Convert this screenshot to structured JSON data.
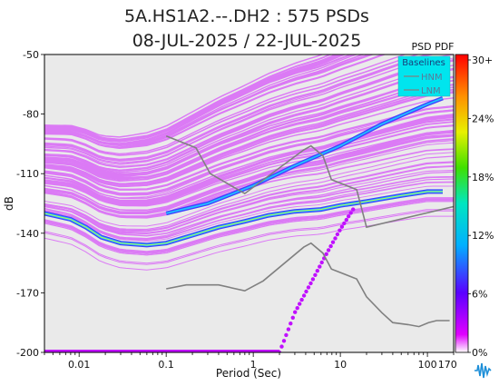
{
  "chart_data": {
    "type": "heatmap",
    "title": "5A.HS1A2.--.DH2 : 575 PSDs",
    "subtitle": "08-JUL-2025 / 22-JUL-2025",
    "xlabel": "Period (Sec)",
    "ylabel": "dB",
    "x_scale": "log",
    "xlim": [
      0.004,
      200
    ],
    "ylim": [
      -200,
      -50
    ],
    "x_ticks": [
      {
        "value": 0.01,
        "label": "0.01"
      },
      {
        "value": 0.1,
        "label": "0.1"
      },
      {
        "value": 1,
        "label": "1"
      },
      {
        "value": 10,
        "label": "10"
      },
      {
        "value": 100,
        "label": "100"
      },
      {
        "value": 170,
        "label": "170"
      }
    ],
    "y_ticks": [
      {
        "value": -50,
        "label": "-50"
      },
      {
        "value": -80,
        "label": "-80"
      },
      {
        "value": -110,
        "label": "-110"
      },
      {
        "value": -140,
        "label": "-140"
      },
      {
        "value": -170,
        "label": "-170"
      },
      {
        "value": -200,
        "label": "-200"
      }
    ],
    "colorbar": {
      "title": "PSD PDF",
      "ticks": [
        "0%",
        "6%",
        "12%",
        "18%",
        "24%",
        "30+"
      ],
      "colors": [
        "#ffffff",
        "#d800ff",
        "#3a00ff",
        "#00c8ff",
        "#00e070",
        "#dcf000",
        "#ff8000",
        "#ff0000"
      ]
    },
    "legend": {
      "title": "Baselines",
      "position": "top-right",
      "background": "#00e5ee",
      "entries": [
        "HNM",
        "LNM"
      ]
    },
    "colors": {
      "background": "#eaeaea",
      "density_low": "#d020ff",
      "density_mid": "#4040ff",
      "density_high": "#20c0ff",
      "baseline": "#808080"
    },
    "baselines": {
      "HNM": [
        [
          0.1,
          -91
        ],
        [
          0.22,
          -97
        ],
        [
          0.32,
          -110
        ],
        [
          0.8,
          -120
        ],
        [
          3.8,
          -98
        ],
        [
          4.6,
          -96
        ],
        [
          6.3,
          -101
        ],
        [
          7.9,
          -113
        ],
        [
          15.4,
          -118
        ],
        [
          20,
          -137
        ],
        [
          354,
          -124
        ]
      ],
      "LNM": [
        [
          0.1,
          -168
        ],
        [
          0.17,
          -166
        ],
        [
          0.4,
          -166
        ],
        [
          0.8,
          -169
        ],
        [
          1.3,
          -164
        ],
        [
          3.8,
          -147
        ],
        [
          4.6,
          -145
        ],
        [
          6.3,
          -150
        ],
        [
          7.9,
          -158
        ],
        [
          15.4,
          -163
        ],
        [
          20,
          -172
        ],
        [
          30,
          -180
        ],
        [
          40,
          -185
        ],
        [
          60,
          -186
        ],
        [
          80,
          -187
        ],
        [
          103,
          -185
        ],
        [
          127,
          -184
        ],
        [
          150,
          -184
        ],
        [
          180,
          -184
        ]
      ]
    },
    "main_trend": [
      [
        0.004,
        -130
      ],
      [
        0.008,
        -133
      ],
      [
        0.012,
        -137
      ],
      [
        0.018,
        -142
      ],
      [
        0.03,
        -145
      ],
      [
        0.06,
        -146
      ],
      [
        0.1,
        -145
      ],
      [
        0.2,
        -141
      ],
      [
        0.4,
        -137
      ],
      [
        0.8,
        -134
      ],
      [
        1.5,
        -131
      ],
      [
        3,
        -129
      ],
      [
        6,
        -128
      ],
      [
        10,
        -126
      ],
      [
        20,
        -124
      ],
      [
        50,
        -121
      ],
      [
        100,
        -119
      ],
      [
        150,
        -119
      ]
    ],
    "secondary_trend": [
      [
        0.1,
        -130
      ],
      [
        0.3,
        -125
      ],
      [
        1,
        -116
      ],
      [
        3,
        -106
      ],
      [
        10,
        -96
      ],
      [
        30,
        -85
      ],
      [
        100,
        -75
      ],
      [
        150,
        -72
      ]
    ],
    "dotted_trend": [
      [
        2,
        -200
      ],
      [
        3,
        -180
      ],
      [
        5,
        -162
      ],
      [
        7,
        -150
      ],
      [
        10,
        -138
      ],
      [
        14,
        -128
      ]
    ]
  }
}
